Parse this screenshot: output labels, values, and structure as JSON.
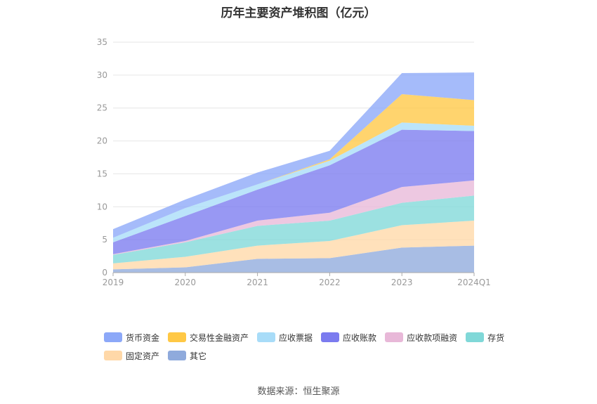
{
  "chart_data": {
    "type": "area",
    "title": "历年主要资产堆积图（亿元）",
    "categories": [
      "2019",
      "2020",
      "2021",
      "2022",
      "2023",
      "2024Q1"
    ],
    "ylim": [
      0,
      35
    ],
    "yticks": [
      0,
      5,
      10,
      15,
      20,
      25,
      30,
      35
    ],
    "grid": true,
    "legend_position": "bottom",
    "stacked": true,
    "series": [
      {
        "name": "其它",
        "color": "#8faadc",
        "values": [
          0.5,
          0.8,
          2.1,
          2.2,
          3.8,
          4.1
        ]
      },
      {
        "name": "固定资产",
        "color": "#ffd8a8",
        "values": [
          0.9,
          1.6,
          2.0,
          2.6,
          3.4,
          3.8
        ]
      },
      {
        "name": "存货",
        "color": "#80d8d8",
        "values": [
          1.3,
          2.2,
          3.0,
          3.1,
          3.4,
          3.8
        ]
      },
      {
        "name": "应收款项融资",
        "color": "#e8b8d8",
        "values": [
          0.1,
          0.2,
          0.8,
          1.2,
          2.4,
          2.3
        ]
      },
      {
        "name": "应收账款",
        "color": "#7b7bef",
        "values": [
          1.8,
          3.8,
          4.7,
          7.2,
          8.7,
          7.5
        ]
      },
      {
        "name": "应收票据",
        "color": "#a8dcf8",
        "values": [
          0.7,
          1.2,
          0.8,
          0.7,
          1.1,
          0.8
        ]
      },
      {
        "name": "交易性金融资产",
        "color": "#ffc845",
        "values": [
          0.0,
          0.0,
          0.0,
          0.2,
          4.3,
          3.9
        ]
      },
      {
        "name": "货币资金",
        "color": "#8ca8f8",
        "values": [
          1.3,
          1.3,
          1.8,
          1.3,
          3.2,
          4.2
        ]
      }
    ],
    "legend_order": [
      "货币资金",
      "交易性金融资产",
      "应收票据",
      "应收账款",
      "应收款项融资",
      "存货",
      "固定资产",
      "其它"
    ]
  },
  "footer": {
    "source": "数据来源：恒生聚源"
  }
}
